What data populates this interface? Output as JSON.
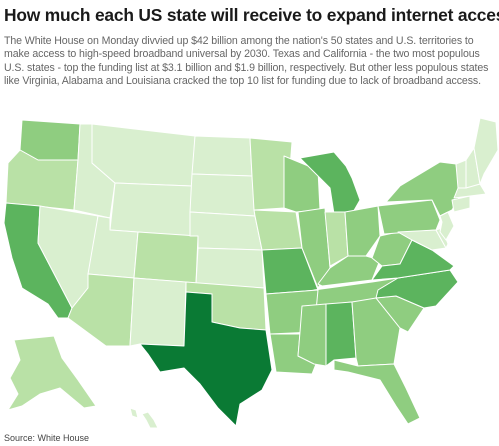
{
  "headline": "How much each US state will receive to expand internet access",
  "dek": "The White House on Monday divvied up $42 billion among the nation's 50 states and U.S. territories to make access to high-speed broadband universal by 2030. Texas and California - the two most populous U.S. states - top the funding list at $3.1 billion and $1.9 billion, respectively. But other less populous states like Virginia, Alabama and Louisiana cracked the top 10 list for funding due to lack of broadband access.",
  "source": "Source: White House",
  "colors": {
    "level_1": "#d9efcf",
    "level_2": "#b9e1a6",
    "level_3": "#8fcd80",
    "level_4": "#5cb45e",
    "level_5": "#0a7a34",
    "border": "#ffffff",
    "text": "#1a1a1a",
    "muted": "#666666"
  },
  "map_data": {
    "type": "choropleth",
    "shading_levels": {
      "texas": 5,
      "california": 4,
      "missouri": 4,
      "michigan": 4,
      "virginia": 4,
      "north-carolina": 4,
      "alabama": 4,
      "washington": 3,
      "wisconsin": 3,
      "illinois": 3,
      "ohio": 3,
      "pennsylvania": 3,
      "new-york": 3,
      "kentucky": 3,
      "tennessee": 3,
      "georgia": 3,
      "arkansas": 3,
      "louisiana": 3,
      "mississippi": 3,
      "south-carolina": 3,
      "florida": 3,
      "west-virginia": 3,
      "minnesota": 2,
      "oregon": 2,
      "iowa": 2,
      "indiana": 2,
      "arizona": 2,
      "colorado": 2,
      "oklahoma": 2,
      "alaska": 2,
      "idaho": 1,
      "montana": 1,
      "wyoming": 1,
      "nevada": 1,
      "utah": 1,
      "new-mexico": 1,
      "north-dakota": 1,
      "south-dakota": 1,
      "nebraska": 1,
      "kansas": 1,
      "maine": 1,
      "vermont": 1,
      "new-hampshire": 1,
      "massachusetts": 1,
      "connecticut": 1,
      "new-jersey": 1,
      "maryland": 1,
      "delaware": 1,
      "hawaii": 1
    }
  }
}
